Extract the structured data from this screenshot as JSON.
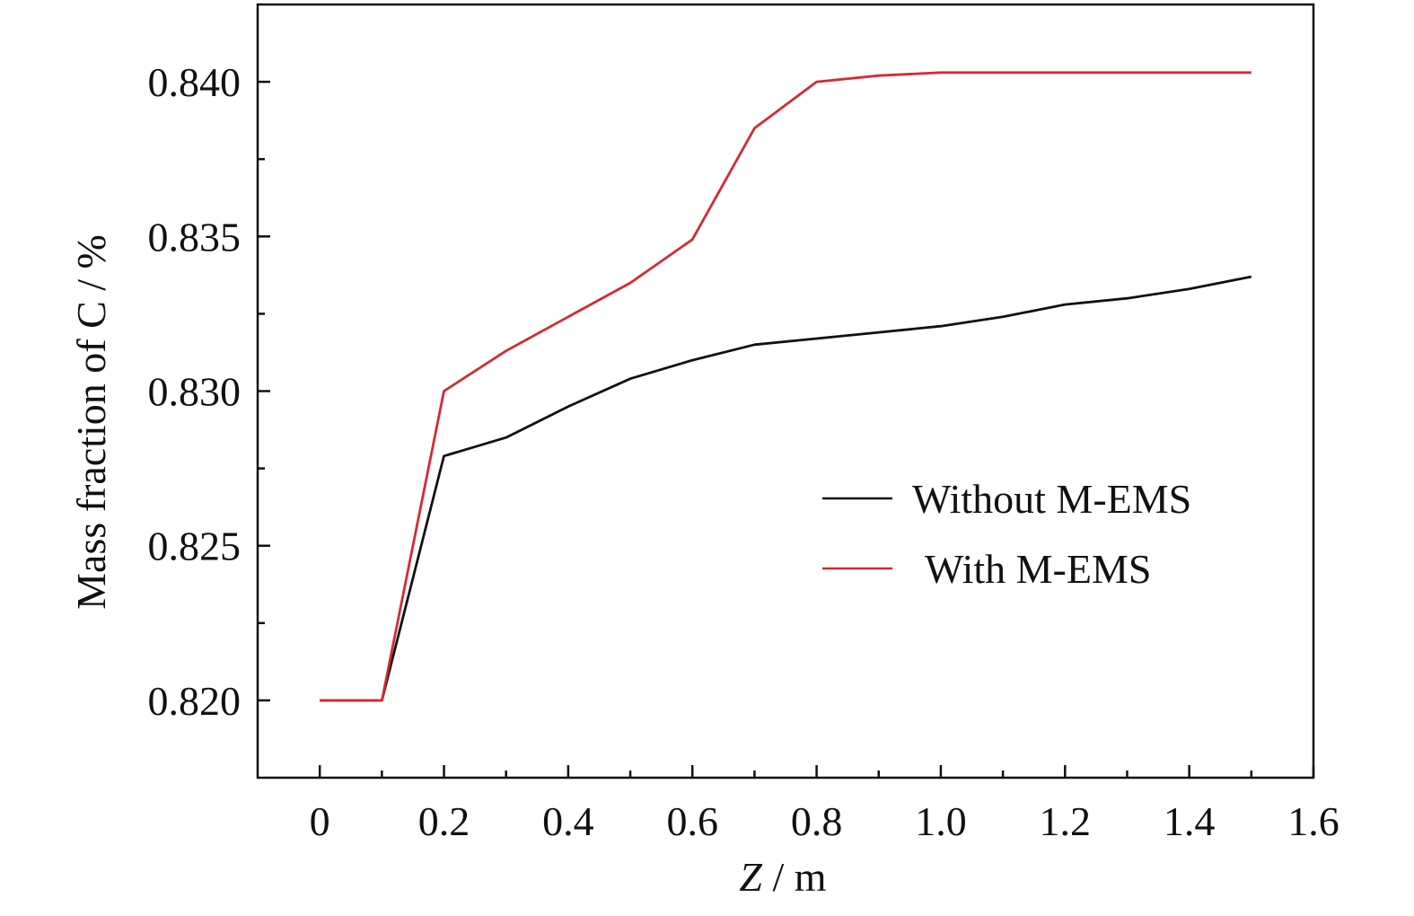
{
  "chart_data": {
    "type": "line",
    "title": "",
    "xlabel_var": "Z",
    "xlabel_unit": " / m",
    "ylabel": "Mass fraction of C / %",
    "xlim": [
      -0.1,
      1.6
    ],
    "ylim": [
      0.8175,
      0.8425
    ],
    "x_ticks": [
      0,
      0.2,
      0.4,
      0.6,
      0.8,
      1.0,
      1.2,
      1.4,
      1.6
    ],
    "x_tick_labels": [
      "0",
      "0.2",
      "0.4",
      "0.6",
      "0.8",
      "1.0",
      "1.2",
      "1.4",
      "1.6"
    ],
    "x_minor_ticks": [
      0.1,
      0.3,
      0.5,
      0.7,
      0.9,
      1.1,
      1.3,
      1.5
    ],
    "y_ticks": [
      0.82,
      0.825,
      0.83,
      0.835,
      0.84
    ],
    "y_tick_labels": [
      "0.820",
      "0.825",
      "0.830",
      "0.835",
      "0.840"
    ],
    "y_minor_ticks": [
      0.8225,
      0.8275,
      0.8325,
      0.8375
    ],
    "grid": false,
    "legend_position": "lower-right",
    "x": [
      0,
      0.1,
      0.2,
      0.3,
      0.4,
      0.5,
      0.6,
      0.7,
      0.8,
      0.9,
      1.0,
      1.1,
      1.2,
      1.3,
      1.4,
      1.5
    ],
    "series": [
      {
        "name": "Without M-EMS",
        "color": "#111111",
        "values": [
          0.82,
          0.82,
          0.8279,
          0.8285,
          0.8295,
          0.8304,
          0.831,
          0.8315,
          0.8317,
          0.8319,
          0.8321,
          0.8324,
          0.8328,
          0.833,
          0.8333,
          0.8337
        ]
      },
      {
        "name": "With M-EMS",
        "color": "#d42a35",
        "values": [
          0.82,
          0.82,
          0.83,
          0.8313,
          0.8324,
          0.8335,
          0.8349,
          0.8385,
          0.84,
          0.8402,
          0.8403,
          0.8403,
          0.8403,
          0.8403,
          0.8403,
          0.8403
        ]
      }
    ]
  }
}
